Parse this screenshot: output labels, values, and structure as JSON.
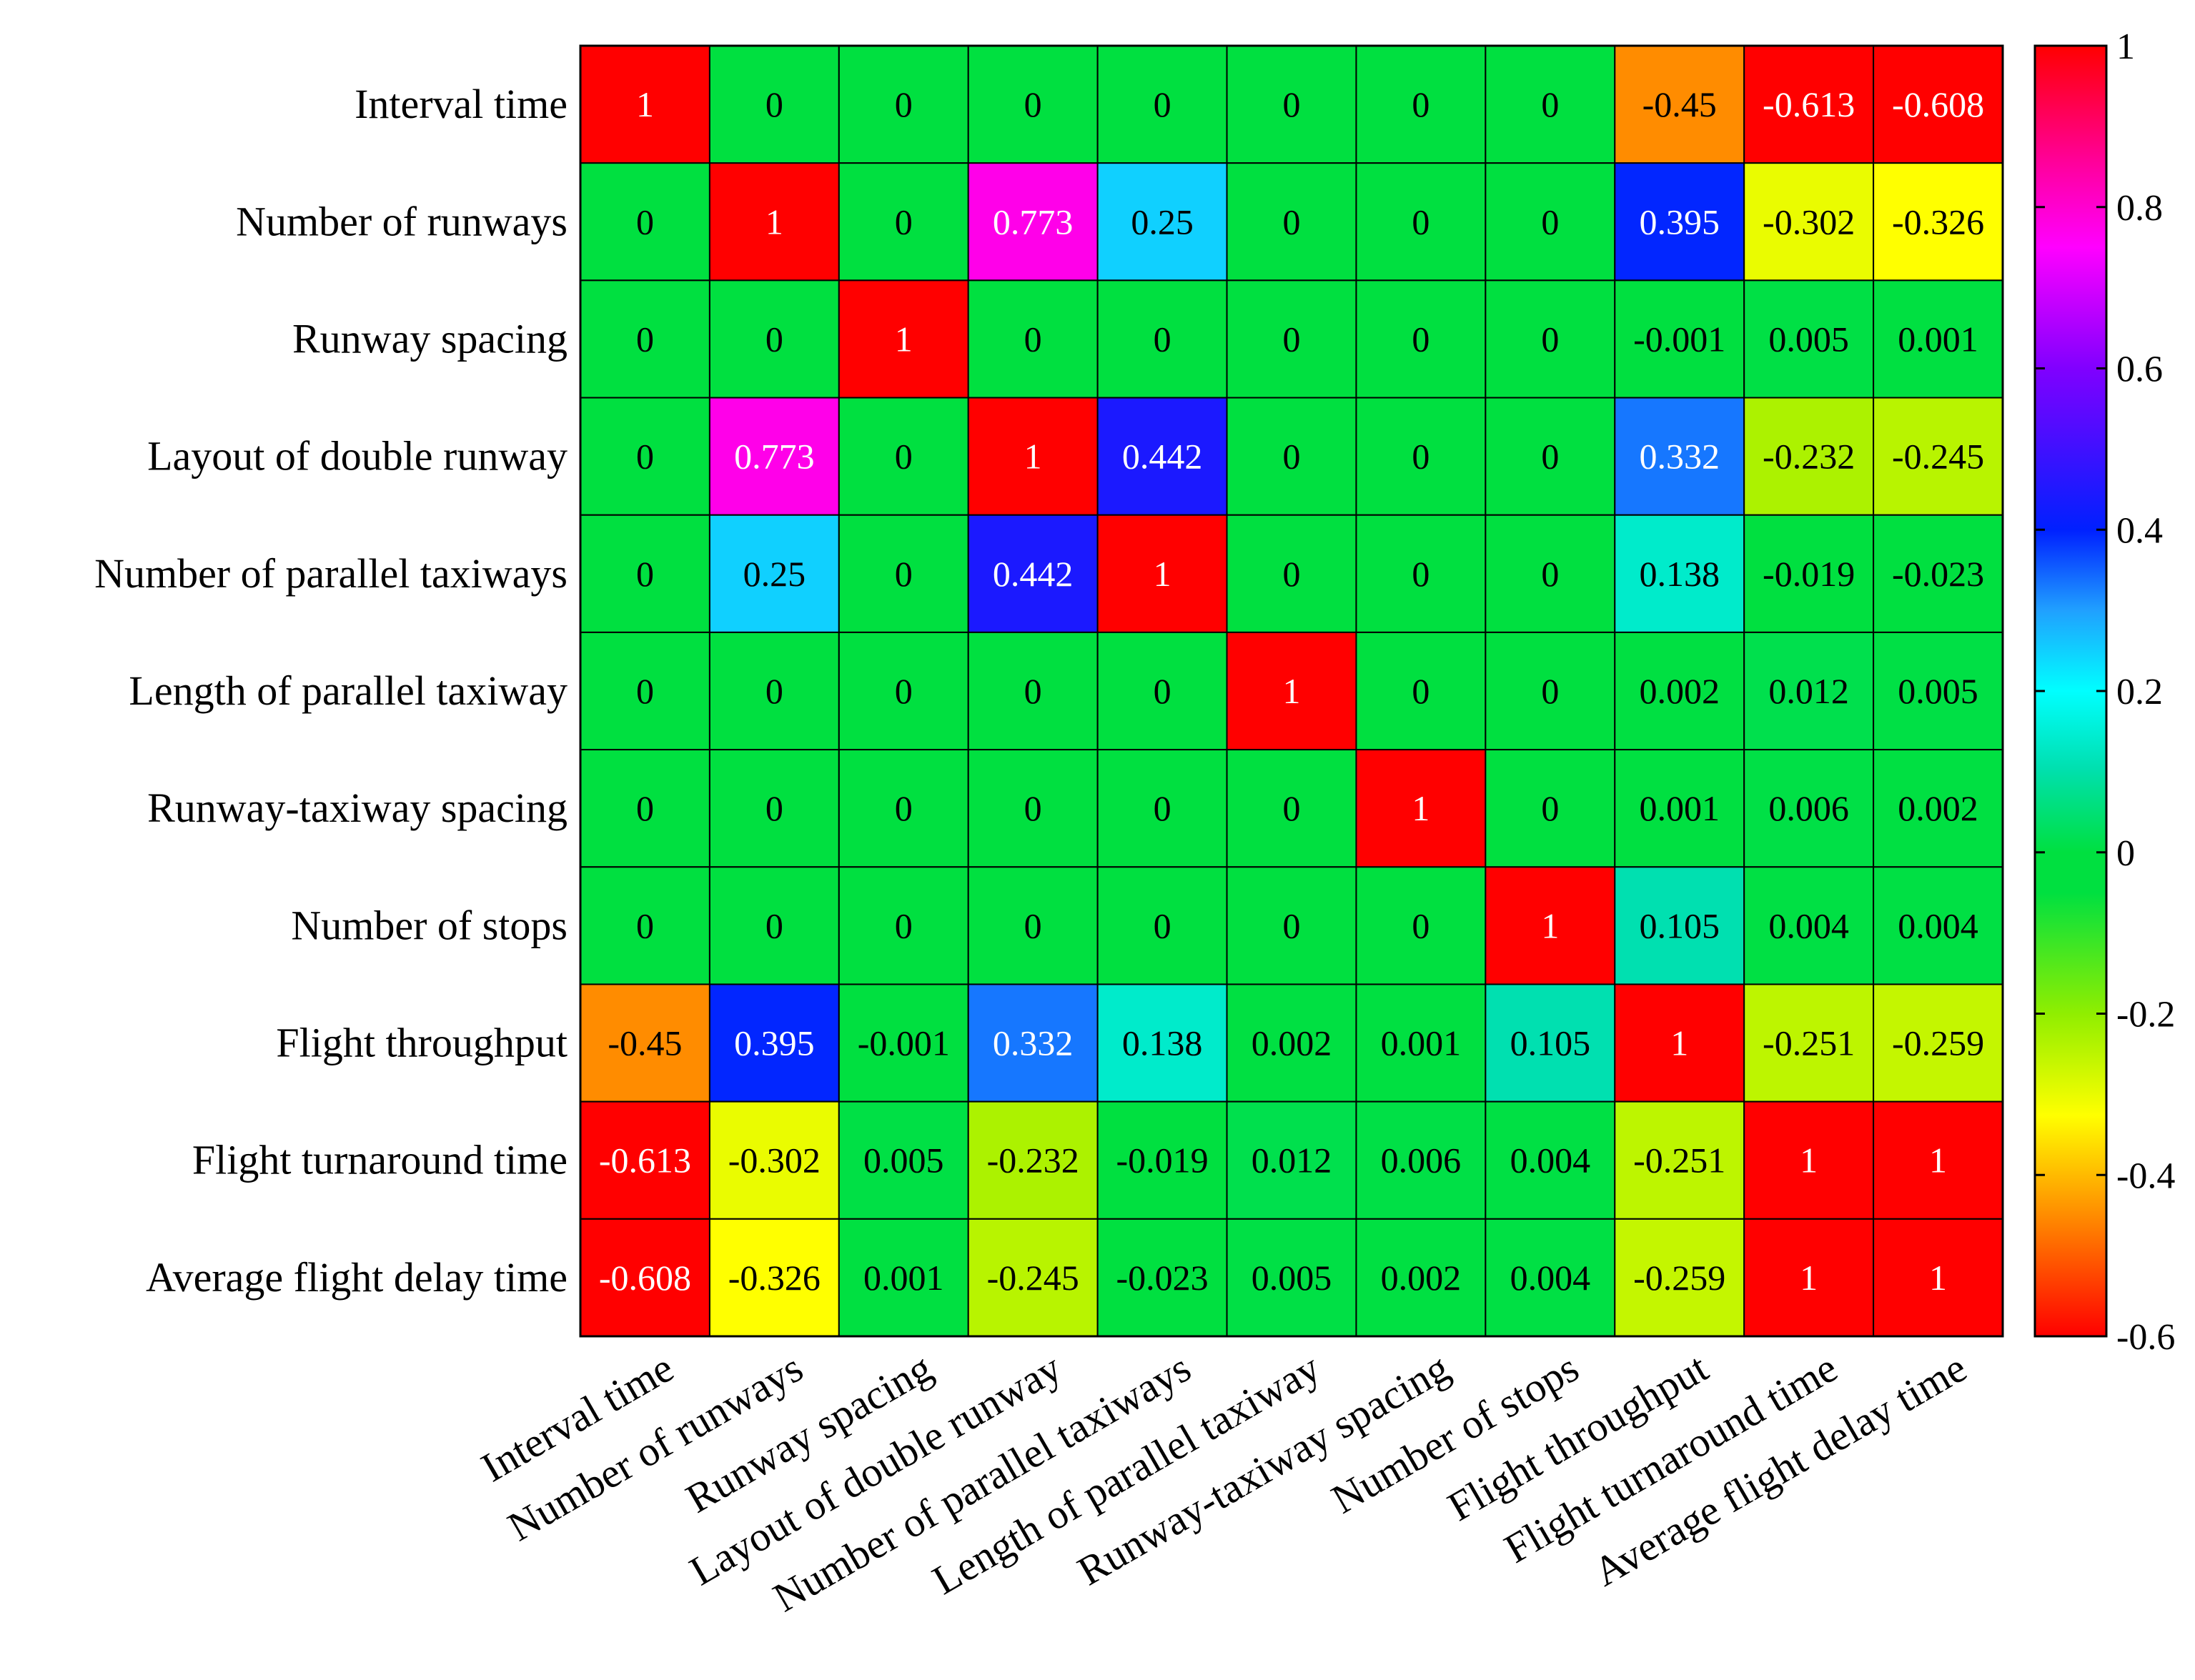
{
  "chart_data": {
    "type": "heatmap",
    "title": "",
    "labels": [
      "Interval time",
      "Number of runways",
      "Runway spacing",
      "Layout of double runway",
      "Number of parallel taxiways",
      "Length of parallel taxiway",
      "Runway-taxiway spacing",
      "Number of stops",
      "Flight throughput",
      "Flight turnaround time",
      "Average flight delay time"
    ],
    "x_labels": [
      "Interval time",
      "Number of runways",
      "Runway spacing",
      "Layout of double runway",
      "Number of parallel taxiways",
      "Length of parallel taxiway",
      "Runway-taxiway spacing",
      "Number of stops",
      "Flight throughput",
      "Flight turnaround time",
      "Average flight delay time"
    ],
    "y_labels": [
      "Interval time",
      "Number of runways",
      "Runway spacing",
      "Layout of double runway",
      "Number of parallel taxiways",
      "Length of parallel taxiway",
      "Runway-taxiway spacing",
      "Number of stops",
      "Flight throughput",
      "Flight turnaround time",
      "Average flight delay time"
    ],
    "display": [
      [
        "1",
        "0",
        "0",
        "0",
        "0",
        "0",
        "0",
        "0",
        "-0.45",
        "-0.613",
        "-0.608"
      ],
      [
        "0",
        "1",
        "0",
        "0.773",
        "0.25",
        "0",
        "0",
        "0",
        "0.395",
        "-0.302",
        "-0.326"
      ],
      [
        "0",
        "0",
        "1",
        "0",
        "0",
        "0",
        "0",
        "0",
        "-0.001",
        "0.005",
        "0.001"
      ],
      [
        "0",
        "0.773",
        "0",
        "1",
        "0.442",
        "0",
        "0",
        "0",
        "0.332",
        "-0.232",
        "-0.245"
      ],
      [
        "0",
        "0.25",
        "0",
        "0.442",
        "1",
        "0",
        "0",
        "0",
        "0.138",
        "-0.019",
        "-0.023"
      ],
      [
        "0",
        "0",
        "0",
        "0",
        "0",
        "1",
        "0",
        "0",
        "0.002",
        "0.012",
        "0.005"
      ],
      [
        "0",
        "0",
        "0",
        "0",
        "0",
        "0",
        "1",
        "0",
        "0.001",
        "0.006",
        "0.002"
      ],
      [
        "0",
        "0",
        "0",
        "0",
        "0",
        "0",
        "0",
        "1",
        "0.105",
        "0.004",
        "0.004"
      ],
      [
        "-0.45",
        "0.395",
        "-0.001",
        "0.332",
        "0.138",
        "0.002",
        "0.001",
        "0.105",
        "1",
        "-0.251",
        "-0.259"
      ],
      [
        "-0.613",
        "-0.302",
        "0.005",
        "-0.232",
        "-0.019",
        "0.012",
        "0.006",
        "0.004",
        "-0.251",
        "1",
        "1"
      ],
      [
        "-0.608",
        "-0.326",
        "0.001",
        "-0.245",
        "-0.023",
        "0.005",
        "0.002",
        "0.004",
        "-0.259",
        "1",
        "1"
      ]
    ],
    "colorbar": {
      "min": -0.6,
      "max": 1,
      "ticks": [
        1,
        0.8,
        0.6,
        0.4,
        0.2,
        0,
        -0.2,
        -0.4,
        -0.6
      ],
      "tick_labels": [
        "1",
        "0.8",
        "0.6",
        "0.4",
        "0.2",
        "0",
        "-0.2",
        "-0.4",
        "-0.6"
      ],
      "colormap": [
        {
          "v": -0.6,
          "color": "#ff0000"
        },
        {
          "v": -0.45,
          "color": "#ff8c00"
        },
        {
          "v": -0.326,
          "color": "#ffff00"
        },
        {
          "v": -0.2,
          "color": "#90ee00"
        },
        {
          "v": -0.05,
          "color": "#00e040"
        },
        {
          "v": 0.0,
          "color": "#00e040"
        },
        {
          "v": 0.105,
          "color": "#00e0b0"
        },
        {
          "v": 0.2,
          "color": "#00ffff"
        },
        {
          "v": 0.3,
          "color": "#20a0ff"
        },
        {
          "v": 0.4,
          "color": "#0020ff"
        },
        {
          "v": 0.6,
          "color": "#8000ff"
        },
        {
          "v": 0.75,
          "color": "#ff00ff"
        },
        {
          "v": 0.85,
          "color": "#ff00a0"
        },
        {
          "v": 1.0,
          "color": "#ff0000"
        }
      ]
    },
    "grid": true,
    "legend": "colorbar-right"
  }
}
